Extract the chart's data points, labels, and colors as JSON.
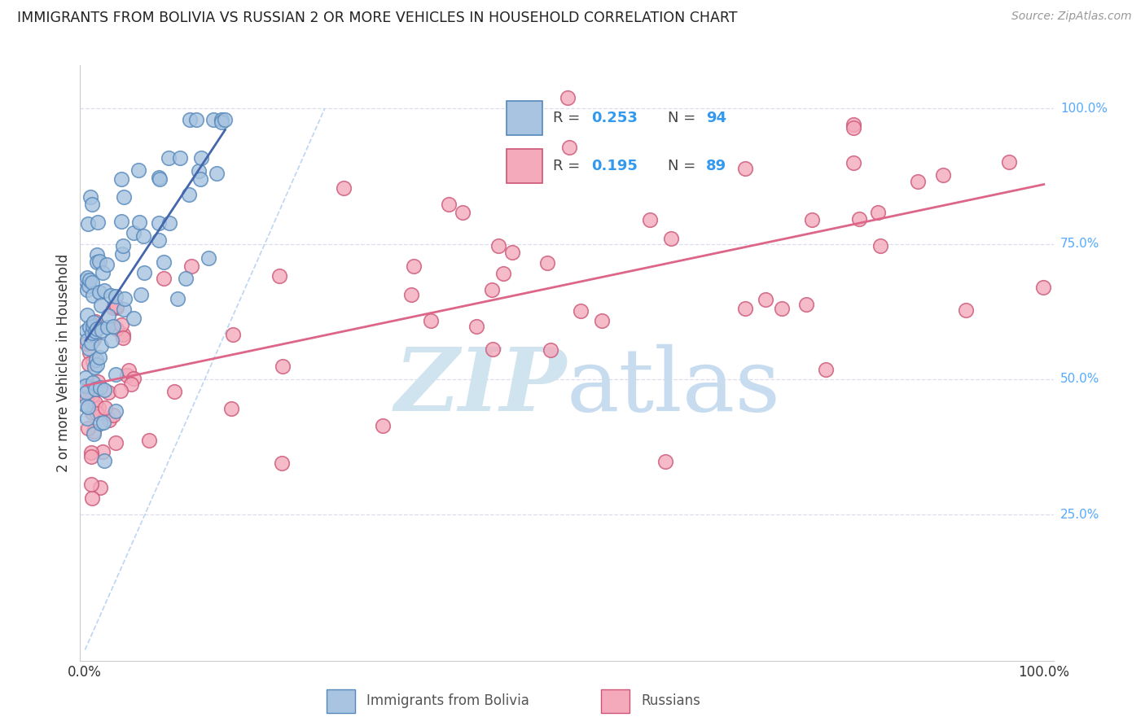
{
  "title": "IMMIGRANTS FROM BOLIVIA VS RUSSIAN 2 OR MORE VEHICLES IN HOUSEHOLD CORRELATION CHART",
  "source": "Source: ZipAtlas.com",
  "ylabel": "2 or more Vehicles in Household",
  "legend_label1": "Immigrants from Bolivia",
  "legend_label2": "Russians",
  "legend_R1": "0.253",
  "legend_N1": "94",
  "legend_R2": "0.195",
  "legend_N2": "89",
  "bolivia_color": "#A8C4E0",
  "bolivia_edge": "#5588BB",
  "russia_color": "#F4AABB",
  "russia_edge": "#CC5577",
  "bolivia_line_color": "#4466AA",
  "russia_line_color": "#DD6688",
  "diag_color": "#AACCEE",
  "watermark_color": "#D0E4F0",
  "background_color": "#FFFFFF",
  "grid_color": "#DDDDEE",
  "label_color": "#333333",
  "blue_color": "#3399EE",
  "right_label_color": "#55AAFF",
  "source_color": "#999999",
  "seed": 12345
}
